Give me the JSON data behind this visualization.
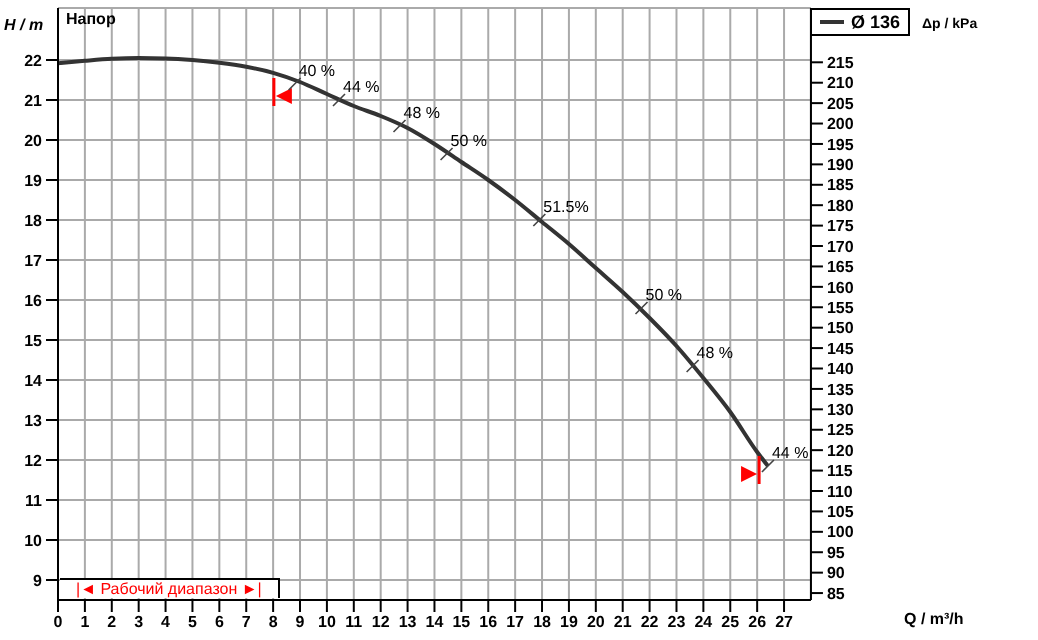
{
  "chart_data": {
    "type": "line",
    "title": "Напор",
    "xlabel": "Q / m³/h",
    "ylabel": "H / m",
    "y2label": "Δp / kPa",
    "xlim": [
      0,
      28
    ],
    "xticks": [
      0,
      1,
      2,
      3,
      4,
      5,
      6,
      7,
      8,
      9,
      10,
      11,
      12,
      13,
      14,
      15,
      16,
      17,
      18,
      19,
      20,
      21,
      22,
      23,
      24,
      25,
      26,
      27
    ],
    "ylim": [
      8.5,
      23.3
    ],
    "yticks": [
      9,
      10,
      11,
      12,
      13,
      14,
      15,
      16,
      17,
      18,
      19,
      20,
      21,
      22
    ],
    "y2lim": [
      83.3,
      228.3
    ],
    "y2ticks": [
      85,
      90,
      95,
      100,
      105,
      110,
      115,
      120,
      125,
      130,
      135,
      140,
      145,
      150,
      155,
      160,
      165,
      170,
      175,
      180,
      185,
      190,
      195,
      200,
      205,
      210,
      215
    ],
    "grid": true,
    "legend": "top right",
    "marker": "none",
    "line_style": "solid",
    "series": [
      {
        "name": "Ø 136",
        "color": "#333333",
        "x": [
          0,
          1,
          2,
          3,
          4,
          5,
          6,
          7,
          8,
          9,
          10,
          11,
          12,
          13,
          14,
          15,
          16,
          17,
          18,
          19,
          20,
          21,
          22,
          23,
          24,
          25,
          26,
          26.4
        ],
        "values": [
          21.92,
          21.98,
          22.03,
          22.05,
          22.04,
          22.0,
          21.93,
          21.83,
          21.68,
          21.45,
          21.15,
          20.85,
          20.6,
          20.3,
          19.9,
          19.45,
          19.0,
          18.5,
          17.95,
          17.4,
          16.8,
          16.2,
          15.55,
          14.85,
          14.05,
          13.2,
          12.2,
          11.85
        ]
      },
      {
        "type": "scatter",
        "color": "#ff0000",
        "marker": "triangle",
        "x": [
          8.4,
          25.7
        ],
        "values": [
          21.1,
          11.65
        ]
      }
    ],
    "annotations": [
      {
        "text": "40 %",
        "x": 8.8,
        "y": 21.4
      },
      {
        "text": "44 %",
        "x": 10.45,
        "y": 21.0
      },
      {
        "text": "48 %",
        "x": 12.7,
        "y": 20.35
      },
      {
        "text": "50 %",
        "x": 14.45,
        "y": 19.65
      },
      {
        "text": "51.5%",
        "x": 17.9,
        "y": 18.0
      },
      {
        "text": "50 %",
        "x": 21.7,
        "y": 15.8
      },
      {
        "text": "48 %",
        "x": 23.6,
        "y": 14.35
      },
      {
        "text": "44 %",
        "x": 26.4,
        "y": 11.85
      },
      "|◄ Рабочий диапазон ►|"
    ]
  }
}
